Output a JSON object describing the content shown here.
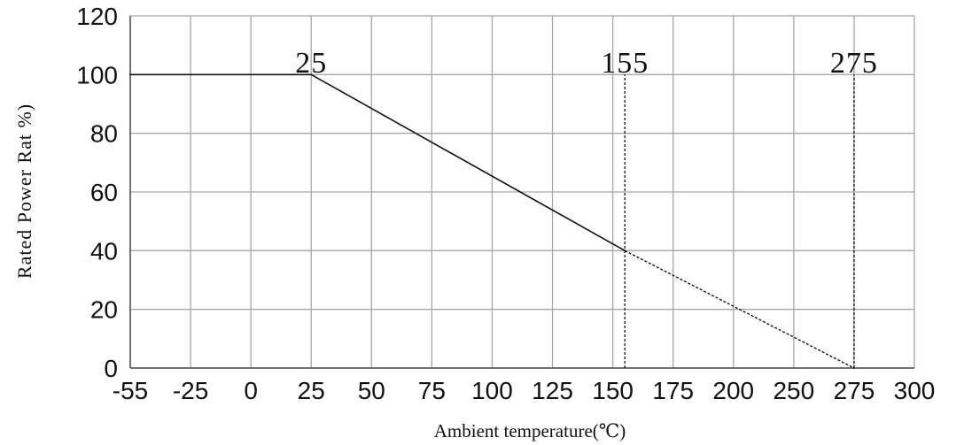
{
  "chart_data": {
    "type": "line",
    "xlabel": "Ambient temperature(℃)",
    "ylabel": "Rated Power Rat %)",
    "x_ticks": [
      "-55",
      "-25",
      "0",
      "25",
      "50",
      "75",
      "100",
      "125",
      "150",
      "175",
      "200",
      "250",
      "275",
      "300"
    ],
    "y_ticks": [
      "0",
      "20",
      "40",
      "60",
      "80",
      "100",
      "120"
    ],
    "ylim": [
      0,
      120
    ],
    "grid": true,
    "series": [
      {
        "style": "solid",
        "points": [
          {
            "x": -55,
            "y": 100
          },
          {
            "x": 25,
            "y": 100
          },
          {
            "x": 155,
            "y": 40
          }
        ]
      },
      {
        "style": "dashed",
        "points": [
          {
            "x": 155,
            "y": 40
          },
          {
            "x": 275,
            "y": 0
          }
        ]
      }
    ],
    "vertical_markers": [
      {
        "x": 155,
        "y_from": 0,
        "y_to": 100,
        "style": "dashed"
      },
      {
        "x": 275,
        "y_from": 0,
        "y_to": 100,
        "style": "dashed"
      }
    ],
    "annotations": [
      {
        "text": "25",
        "x": 25
      },
      {
        "text": "155",
        "x": 155
      },
      {
        "text": "275",
        "x": 275
      }
    ],
    "colors": {
      "line": "#111111",
      "grid": "#a6a6a6",
      "axis": "#444444"
    }
  }
}
